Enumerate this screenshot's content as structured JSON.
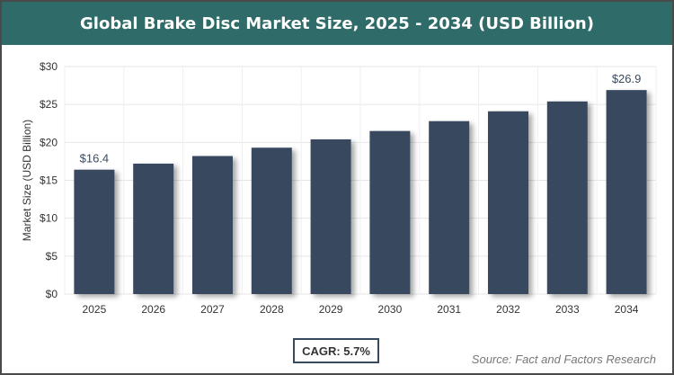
{
  "chart_data": {
    "type": "bar",
    "title": "Global Brake Disc Market Size, 2025 - 2034 (USD Billion)",
    "xlabel": "",
    "ylabel": "Market Size (USD Billion)",
    "categories": [
      "2025",
      "2026",
      "2027",
      "2028",
      "2029",
      "2030",
      "2031",
      "2032",
      "2033",
      "2034"
    ],
    "values": [
      16.4,
      17.2,
      18.2,
      19.3,
      20.4,
      21.5,
      22.8,
      24.1,
      25.4,
      26.9
    ],
    "data_labels": {
      "0": "$16.4",
      "9": "$26.9"
    },
    "ylim": [
      0,
      30
    ],
    "yticks": [
      "$0",
      "$5",
      "$10",
      "$15",
      "$20",
      "$25",
      "$30"
    ],
    "grid": true,
    "bar_color": "#374a5e",
    "title_bar_color": "#2f6b68"
  },
  "cagr": "CAGR: 5.7%",
  "source": "Source: Fact and Factors Research"
}
